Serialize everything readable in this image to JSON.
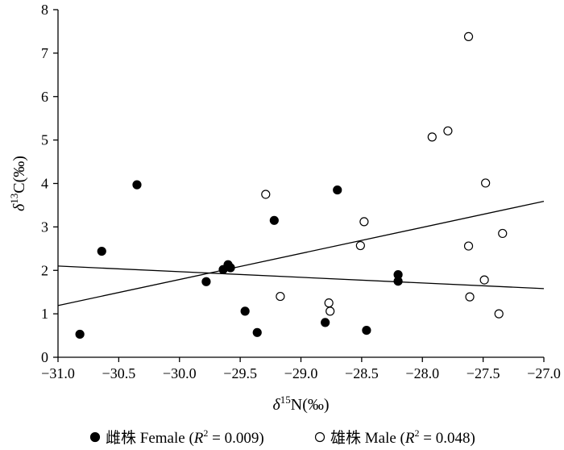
{
  "chart_data": {
    "type": "scatter",
    "title": "",
    "xlabel": {
      "delta": "δ",
      "sup": "15",
      "rest": "N(‰)"
    },
    "ylabel": {
      "delta": "δ",
      "sup": "13",
      "rest": "C(‰)"
    },
    "xlim": [
      -31.0,
      -27.0
    ],
    "ylim": [
      0,
      8
    ],
    "xticks": [
      -31.0,
      -30.5,
      -30.0,
      -29.5,
      -29.0,
      -28.5,
      -28.0,
      -27.5,
      -27.0
    ],
    "xtick_labels": [
      "−31.0",
      "−30.5",
      "−30.0",
      "−29.5",
      "−29.0",
      "−28.5",
      "−28.0",
      "−27.5",
      "−27.0"
    ],
    "yticks": [
      0,
      1,
      2,
      3,
      4,
      5,
      6,
      7,
      8
    ],
    "ytick_labels": [
      "0",
      "1",
      "2",
      "3",
      "4",
      "5",
      "6",
      "7",
      "8"
    ],
    "legend_position": "bottom",
    "series": [
      {
        "name": "雌株 Female",
        "marker": "filled-circle",
        "color": "#000000",
        "r2_label": "R",
        "r2_sup": "2",
        "r2_value": " = 0.009)",
        "x": [
          -30.82,
          -30.64,
          -30.35,
          -29.78,
          -29.64,
          -29.6,
          -29.58,
          -29.46,
          -29.36,
          -29.22,
          -28.8,
          -28.7,
          -28.46,
          -28.2,
          -28.2
        ],
        "y": [
          0.53,
          2.44,
          3.97,
          1.74,
          2.02,
          2.13,
          2.06,
          1.06,
          0.57,
          3.15,
          0.8,
          3.85,
          0.62,
          1.9,
          1.75
        ],
        "fit": {
          "x": [
            -31.0,
            -27.0
          ],
          "y": [
            2.1,
            1.58
          ]
        }
      },
      {
        "name": "雄株 Male",
        "marker": "open-circle",
        "color": "#000000",
        "r2_label": "R",
        "r2_sup": "2",
        "r2_value": " = 0.048)",
        "x": [
          -29.29,
          -29.17,
          -28.77,
          -28.76,
          -28.51,
          -28.48,
          -27.92,
          -27.79,
          -27.62,
          -27.62,
          -27.61,
          -27.49,
          -27.48,
          -27.37,
          -27.34
        ],
        "y": [
          3.75,
          1.4,
          1.25,
          1.06,
          2.57,
          3.12,
          5.07,
          5.21,
          7.38,
          2.56,
          1.39,
          1.78,
          4.01,
          1.0,
          2.85
        ],
        "fit": {
          "x": [
            -31.0,
            -27.0
          ],
          "y": [
            1.19,
            3.59
          ]
        }
      }
    ]
  }
}
